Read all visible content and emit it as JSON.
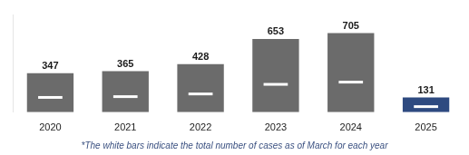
{
  "chart_data": {
    "type": "bar",
    "categories": [
      "2020",
      "2021",
      "2022",
      "2023",
      "2024",
      "2025"
    ],
    "values": [
      347,
      365,
      428,
      653,
      705,
      131
    ],
    "colors": [
      "#6b6b6b",
      "#6b6b6b",
      "#6b6b6b",
      "#6b6b6b",
      "#6b6b6b",
      "#2e4a80"
    ],
    "ylim": [
      0,
      870
    ],
    "grid": false,
    "data_labels": true,
    "tick_labels": "x",
    "footnote": "*The white bars indicate the total number of cases as of March for each year"
  }
}
